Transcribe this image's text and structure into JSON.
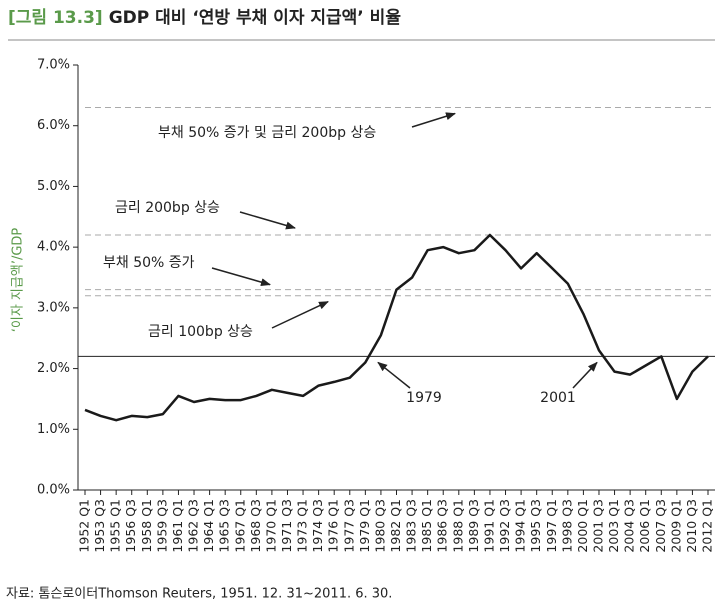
{
  "chart_data": {
    "type": "line",
    "figure_label": "[그림 13.3]",
    "title": "GDP 대비 ‘연방 부채 이자 지급액’ 비율",
    "ylabel": "‘이자 지급액’/GDP",
    "source": "자료: 톰슨로이터Thomson Reuters, 1951. 12. 31~2011. 6. 30.",
    "categories": [
      "1952 Q1",
      "1953 Q3",
      "1955 Q1",
      "1956 Q3",
      "1958 Q1",
      "1959 Q3",
      "1961 Q1",
      "1962 Q3",
      "1964 Q1",
      "1965 Q3",
      "1967 Q1",
      "1968 Q3",
      "1970 Q1",
      "1971 Q3",
      "1973 Q1",
      "1974 Q3",
      "1976 Q1",
      "1977 Q3",
      "1979 Q1",
      "1980 Q3",
      "1982 Q1",
      "1983 Q3",
      "1985 Q1",
      "1986 Q3",
      "1988 Q1",
      "1989 Q3",
      "1991 Q1",
      "1992 Q3",
      "1994 Q1",
      "1995 Q3",
      "1997 Q1",
      "1998 Q3",
      "2000 Q1",
      "2001 Q3",
      "2003 Q1",
      "2004 Q3",
      "2006 Q1",
      "2007 Q3",
      "2009 Q1",
      "2010 Q3",
      "2012 Q1"
    ],
    "series": [
      {
        "color": "#1a1a1a",
        "values": [
          1.32,
          1.22,
          1.15,
          1.22,
          1.2,
          1.25,
          1.55,
          1.45,
          1.5,
          1.48,
          1.48,
          1.55,
          1.65,
          1.6,
          1.55,
          1.72,
          1.78,
          1.85,
          2.1,
          2.55,
          3.3,
          3.5,
          3.95,
          4.0,
          3.9,
          3.95,
          4.2,
          3.95,
          3.65,
          3.9,
          3.65,
          3.4,
          2.9,
          2.3,
          1.95,
          1.9,
          2.05,
          2.2,
          1.5,
          1.95,
          2.2
        ]
      }
    ],
    "ylim": [
      0,
      7
    ],
    "yticks": [
      {
        "value": 0,
        "label": "0.0%"
      },
      {
        "value": 1,
        "label": "1.0%"
      },
      {
        "value": 2,
        "label": "2.0%"
      },
      {
        "value": 3,
        "label": "3.0%"
      },
      {
        "value": 4,
        "label": "4.0%"
      },
      {
        "value": 5,
        "label": "5.0%"
      },
      {
        "value": 6,
        "label": "6.0%"
      },
      {
        "value": 7,
        "label": "7.0%"
      }
    ],
    "reference_lines": [
      {
        "value": 6.3,
        "style": "dashed"
      },
      {
        "value": 4.2,
        "style": "dashed"
      },
      {
        "value": 3.3,
        "style": "dashed"
      },
      {
        "value": 3.2,
        "style": "dashed"
      },
      {
        "value": 2.2,
        "style": "solid"
      }
    ],
    "annotations": [
      {
        "text": "부채 50% 증가 및 금리 200bp 상승",
        "target": 6.3
      },
      {
        "text": "금리 200bp 상승",
        "target": 4.2
      },
      {
        "text": "부채 50% 증가",
        "target": 3.3
      },
      {
        "text": "금리 100bp 상승",
        "target": 3.2
      },
      {
        "text": "1979",
        "target": 2.2
      },
      {
        "text": "2001",
        "target": 2.2
      }
    ]
  }
}
